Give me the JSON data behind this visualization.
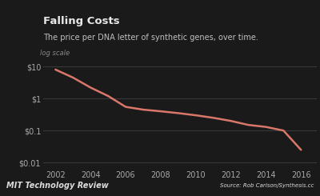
{
  "title": "Falling Costs",
  "subtitle": "The price per DNA letter of synthetic genes, over time.",
  "log_scale_label": "log scale",
  "x_values": [
    2002,
    2003,
    2004,
    2005,
    2006,
    2007,
    2008,
    2009,
    2010,
    2011,
    2012,
    2013,
    2014,
    2015,
    2016
  ],
  "y_values": [
    8.0,
    4.5,
    2.2,
    1.2,
    0.55,
    0.45,
    0.4,
    0.35,
    0.3,
    0.25,
    0.2,
    0.15,
    0.13,
    0.1,
    0.025
  ],
  "line_color": "#d9776a",
  "line_width": 1.8,
  "background_color": "#1a1a1a",
  "plot_bg_color": "#1a1a1a",
  "footer_bg_color": "#3d5e38",
  "title_color": "#e8e8e8",
  "subtitle_color": "#c0c0c0",
  "log_label_color": "#888888",
  "grid_color": "#404040",
  "tick_label_color": "#aaaaaa",
  "footer_left_text": "MIT Technology Review",
  "footer_right_text": "Source: Rob Carlson/Synthesis.cc",
  "footer_text_color": "#dddddd",
  "yticks": [
    0.01,
    0.1,
    1.0,
    10.0
  ],
  "ytick_labels": [
    "$0.01",
    "$0.1",
    "$1",
    "$10"
  ],
  "xticks": [
    2002,
    2004,
    2006,
    2008,
    2010,
    2012,
    2014,
    2016
  ],
  "ylim": [
    0.007,
    20.0
  ],
  "xlim": [
    2001.3,
    2016.9
  ]
}
